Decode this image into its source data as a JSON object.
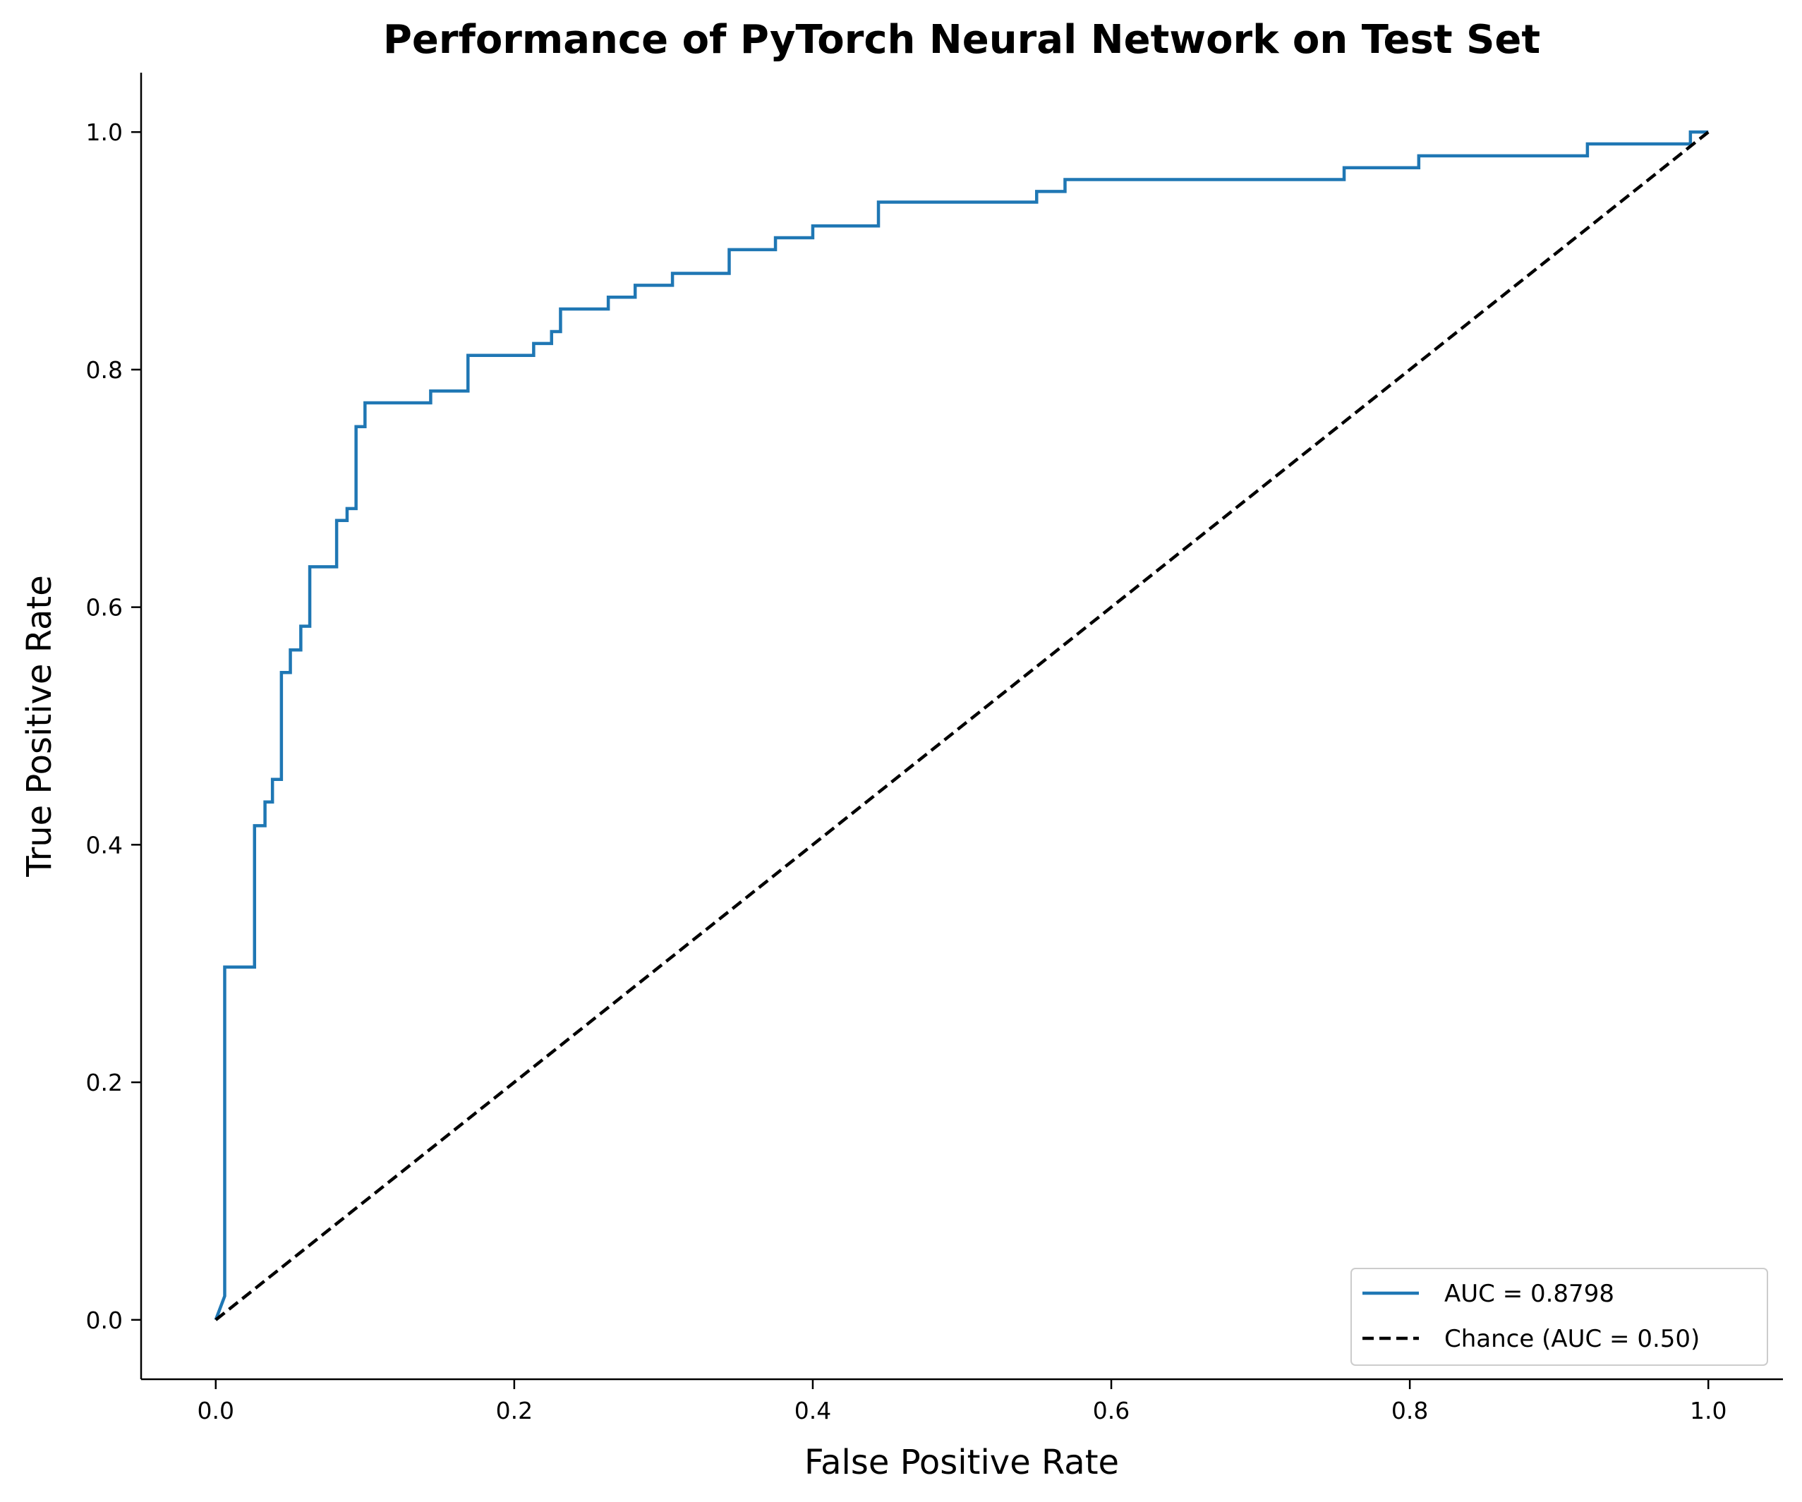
{
  "chart_data": {
    "type": "line",
    "title": "Performance of PyTorch Neural Network on Test Set",
    "xlabel": "False Positive Rate",
    "ylabel": "True Positive Rate",
    "xlim": [
      -0.05,
      1.05
    ],
    "ylim": [
      -0.05,
      1.05
    ],
    "xticks": [
      "0.0",
      "0.2",
      "0.4",
      "0.6",
      "0.8",
      "1.0"
    ],
    "yticks": [
      "0.0",
      "0.2",
      "0.4",
      "0.6",
      "0.8",
      "1.0"
    ],
    "grid": false,
    "legend_position": "lower-right",
    "series": [
      {
        "name": "AUC = 0.8798",
        "color": "#1f77b4",
        "style": "solid",
        "x": [
          0.0,
          0.006,
          0.006,
          0.026,
          0.026,
          0.033,
          0.033,
          0.038,
          0.038,
          0.044,
          0.044,
          0.05,
          0.05,
          0.057,
          0.057,
          0.063,
          0.063,
          0.081,
          0.081,
          0.088,
          0.088,
          0.094,
          0.094,
          0.1,
          0.1,
          0.144,
          0.144,
          0.169,
          0.169,
          0.213,
          0.213,
          0.225,
          0.225,
          0.231,
          0.231,
          0.263,
          0.263,
          0.281,
          0.281,
          0.306,
          0.306,
          0.344,
          0.344,
          0.375,
          0.375,
          0.4,
          0.4,
          0.444,
          0.444,
          0.55,
          0.55,
          0.569,
          0.569,
          0.756,
          0.756,
          0.806,
          0.806,
          0.919,
          0.919,
          0.988,
          0.988,
          1.0
        ],
        "y": [
          0.0,
          0.02,
          0.297,
          0.297,
          0.416,
          0.416,
          0.436,
          0.436,
          0.455,
          0.455,
          0.545,
          0.545,
          0.564,
          0.564,
          0.584,
          0.584,
          0.634,
          0.634,
          0.673,
          0.673,
          0.683,
          0.683,
          0.752,
          0.752,
          0.772,
          0.772,
          0.782,
          0.782,
          0.812,
          0.812,
          0.822,
          0.822,
          0.832,
          0.832,
          0.851,
          0.851,
          0.861,
          0.861,
          0.871,
          0.871,
          0.881,
          0.881,
          0.901,
          0.901,
          0.911,
          0.911,
          0.921,
          0.921,
          0.941,
          0.941,
          0.95,
          0.95,
          0.96,
          0.96,
          0.97,
          0.97,
          0.98,
          0.98,
          0.99,
          0.99,
          1.0,
          1.0
        ]
      },
      {
        "name": "Chance (AUC = 0.50)",
        "color": "#000000",
        "style": "dashed",
        "x": [
          0.0,
          1.0
        ],
        "y": [
          0.0,
          1.0
        ]
      }
    ]
  }
}
